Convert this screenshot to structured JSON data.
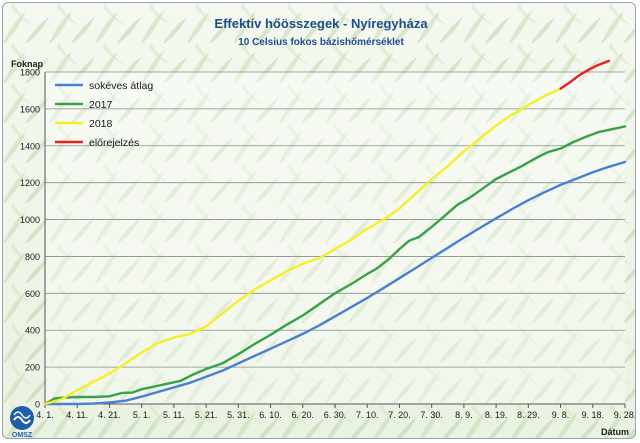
{
  "chart_data": {
    "type": "line",
    "title": "Effektív hőösszegek - Nyíregyháza",
    "subtitle": "10 Celsius fokos bázishőmérséklet",
    "ylabel": "Foknap",
    "xlabel": "Dátum",
    "ylim": [
      0,
      1800
    ],
    "yticks": [
      0,
      200,
      400,
      600,
      800,
      1000,
      1200,
      1400,
      1600,
      1800
    ],
    "xlim": [
      0,
      180
    ],
    "xticks": [
      {
        "pos": 0,
        "label": "4. 1."
      },
      {
        "pos": 10,
        "label": "4. 11."
      },
      {
        "pos": 20,
        "label": "4. 21."
      },
      {
        "pos": 30,
        "label": "5. 1."
      },
      {
        "pos": 40,
        "label": "5. 11."
      },
      {
        "pos": 50,
        "label": "5. 21."
      },
      {
        "pos": 60,
        "label": "5. 31."
      },
      {
        "pos": 70,
        "label": "6. 10."
      },
      {
        "pos": 80,
        "label": "6. 20."
      },
      {
        "pos": 90,
        "label": "6. 30."
      },
      {
        "pos": 100,
        "label": "7. 10."
      },
      {
        "pos": 110,
        "label": "7. 20."
      },
      {
        "pos": 120,
        "label": "7. 30."
      },
      {
        "pos": 130,
        "label": "8. 9."
      },
      {
        "pos": 140,
        "label": "8. 19."
      },
      {
        "pos": 150,
        "label": "8. 29."
      },
      {
        "pos": 160,
        "label": "9. 8."
      },
      {
        "pos": 170,
        "label": "9. 18."
      },
      {
        "pos": 180,
        "label": "9. 28."
      }
    ],
    "grid": true,
    "legend_position": "top-left",
    "series": [
      {
        "name": "sokéves átlag",
        "color": "#4a7fd4",
        "x": [
          0,
          5,
          10,
          15,
          20,
          25,
          30,
          35,
          40,
          45,
          50,
          55,
          60,
          65,
          70,
          75,
          80,
          85,
          90,
          95,
          100,
          105,
          110,
          115,
          120,
          125,
          130,
          135,
          140,
          145,
          150,
          155,
          160,
          165,
          170,
          175,
          180
        ],
        "y": [
          0,
          0,
          0,
          2,
          8,
          18,
          40,
          65,
          90,
          115,
          148,
          180,
          220,
          260,
          300,
          340,
          380,
          425,
          475,
          525,
          575,
          628,
          682,
          737,
          792,
          847,
          902,
          955,
          1007,
          1057,
          1105,
          1148,
          1188,
          1222,
          1256,
          1286,
          1312
        ]
      },
      {
        "name": "2017",
        "color": "#3aa04a",
        "x": [
          0,
          3,
          6,
          10,
          15,
          20,
          24,
          27,
          30,
          34,
          38,
          42,
          46,
          50,
          55,
          60,
          65,
          70,
          75,
          80,
          85,
          90,
          95,
          100,
          103,
          107,
          110,
          113,
          116,
          120,
          124,
          128,
          132,
          136,
          140,
          144,
          148,
          152,
          156,
          160,
          164,
          168,
          172,
          176,
          180
        ],
        "y": [
          0,
          30,
          35,
          38,
          38,
          42,
          60,
          62,
          80,
          95,
          110,
          125,
          160,
          190,
          220,
          270,
          325,
          375,
          430,
          480,
          540,
          600,
          650,
          705,
          735,
          790,
          840,
          885,
          905,
          960,
          1020,
          1080,
          1120,
          1170,
          1220,
          1255,
          1290,
          1330,
          1365,
          1385,
          1420,
          1450,
          1475,
          1490,
          1505
        ]
      },
      {
        "name": "2018",
        "color": "#f4f028",
        "x": [
          0,
          5,
          10,
          15,
          20,
          25,
          30,
          35,
          40,
          45,
          50,
          55,
          60,
          65,
          70,
          75,
          80,
          85,
          90,
          95,
          100,
          105,
          110,
          115,
          120,
          125,
          130,
          135,
          140,
          145,
          150,
          155,
          160
        ],
        "y": [
          0,
          25,
          75,
          120,
          165,
          220,
          280,
          330,
          360,
          380,
          420,
          490,
          560,
          620,
          670,
          720,
          760,
          790,
          840,
          890,
          950,
          1000,
          1060,
          1140,
          1220,
          1290,
          1370,
          1440,
          1510,
          1570,
          1620,
          1670,
          1710
        ]
      },
      {
        "name": "előrejelzés",
        "color": "#e82020",
        "x": [
          160,
          163,
          166,
          169,
          172,
          175
        ],
        "y": [
          1710,
          1745,
          1785,
          1815,
          1840,
          1860
        ]
      }
    ]
  },
  "logo": {
    "text": "OMSZ"
  }
}
